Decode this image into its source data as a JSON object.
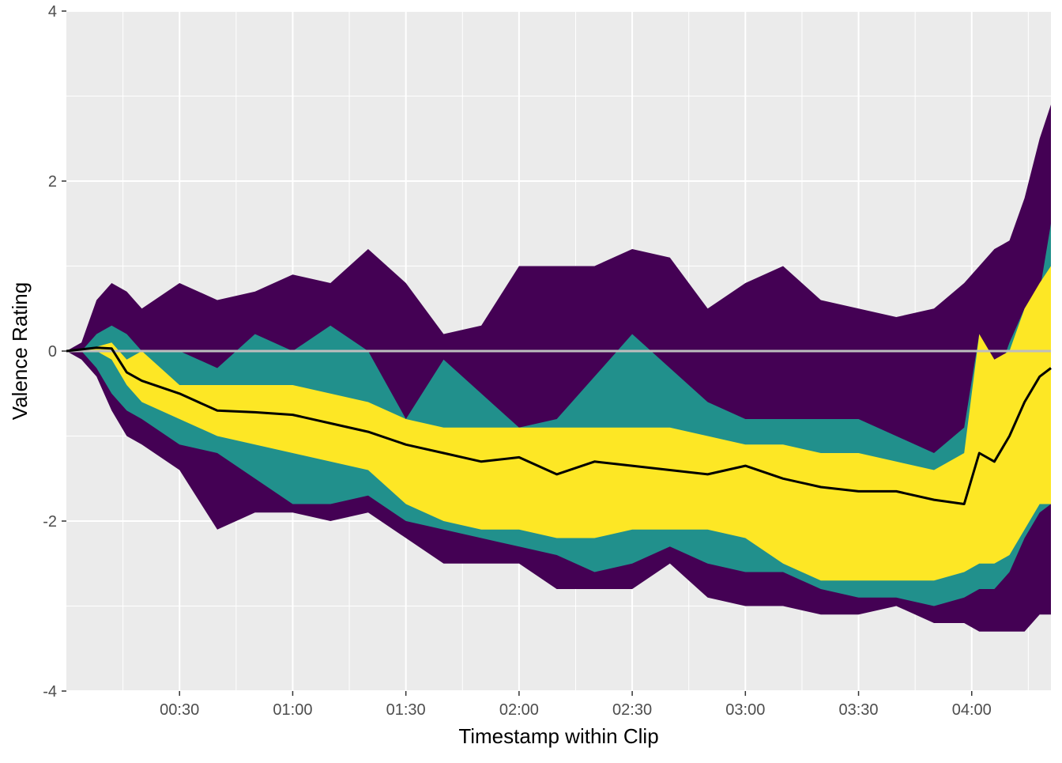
{
  "chart_data": {
    "type": "area",
    "xlabel": "Timestamp within Clip",
    "ylabel": "Valence Rating",
    "x_unit": "mm:ss",
    "xlim": [
      "00:00",
      "04:21"
    ],
    "ylim": [
      -4,
      4
    ],
    "x_ticks": [
      "00:30",
      "01:00",
      "01:30",
      "02:00",
      "02:30",
      "03:00",
      "03:30",
      "04:00"
    ],
    "y_ticks": [
      "-4",
      "-2",
      "0",
      "2",
      "4"
    ],
    "grid": true,
    "legend": "none",
    "reference_line": {
      "y": 0,
      "color": "#bebebe"
    },
    "colors": {
      "panel": "#ebebeb",
      "grid": "#ffffff",
      "outer_band": "#440154",
      "middle_band": "#21908c",
      "inner_band": "#fde725",
      "mean_line": "#000000"
    },
    "x": [
      "00:00",
      "00:04",
      "00:08",
      "00:12",
      "00:16",
      "00:20",
      "00:30",
      "00:40",
      "00:50",
      "01:00",
      "01:10",
      "01:20",
      "01:30",
      "01:40",
      "01:50",
      "02:00",
      "02:10",
      "02:20",
      "02:30",
      "02:40",
      "02:50",
      "03:00",
      "03:10",
      "03:20",
      "03:30",
      "03:40",
      "03:50",
      "03:58",
      "04:02",
      "04:06",
      "04:10",
      "04:14",
      "04:18",
      "04:21"
    ],
    "series": [
      {
        "band": "outer",
        "upper": [
          0,
          0.1,
          0.6,
          0.8,
          0.7,
          0.5,
          0.8,
          0.6,
          0.7,
          0.9,
          0.8,
          1.2,
          0.8,
          0.2,
          0.3,
          1.0,
          1.0,
          1.0,
          1.2,
          1.1,
          0.5,
          0.8,
          1.0,
          0.6,
          0.5,
          0.4,
          0.5,
          0.8,
          1.0,
          1.2,
          1.3,
          1.8,
          2.5,
          2.9
        ],
        "lower": [
          0,
          -0.1,
          -0.3,
          -0.7,
          -1.0,
          -1.1,
          -1.4,
          -2.1,
          -1.9,
          -1.9,
          -2.0,
          -1.9,
          -2.2,
          -2.5,
          -2.5,
          -2.5,
          -2.8,
          -2.8,
          -2.8,
          -2.5,
          -2.9,
          -3.0,
          -3.0,
          -3.1,
          -3.1,
          -3.0,
          -3.2,
          -3.2,
          -3.3,
          -3.3,
          -3.3,
          -3.3,
          -3.1,
          -3.1
        ]
      },
      {
        "band": "middle",
        "upper": [
          0,
          0,
          0.2,
          0.3,
          0.2,
          0,
          0,
          -0.2,
          0.2,
          0,
          0.3,
          0,
          -0.8,
          -0.1,
          -0.5,
          -0.9,
          -0.8,
          -0.3,
          0.2,
          -0.2,
          -0.6,
          -0.8,
          -0.8,
          -0.8,
          -0.8,
          -1.0,
          -1.2,
          -0.9,
          0.2,
          -0.4,
          0.1,
          0.5,
          0.7,
          1.5
        ],
        "lower": [
          0,
          0,
          -0.2,
          -0.5,
          -0.7,
          -0.8,
          -1.1,
          -1.2,
          -1.5,
          -1.8,
          -1.8,
          -1.7,
          -2.0,
          -2.1,
          -2.2,
          -2.3,
          -2.4,
          -2.6,
          -2.5,
          -2.3,
          -2.5,
          -2.6,
          -2.6,
          -2.8,
          -2.9,
          -2.9,
          -3.0,
          -2.9,
          -2.8,
          -2.8,
          -2.6,
          -2.2,
          -1.9,
          -1.8
        ]
      },
      {
        "band": "inner",
        "upper": [
          0,
          0,
          0.05,
          0.1,
          -0.1,
          0,
          -0.4,
          -0.4,
          -0.4,
          -0.4,
          -0.5,
          -0.6,
          -0.8,
          -0.9,
          -0.9,
          -0.9,
          -0.9,
          -0.9,
          -0.9,
          -0.9,
          -1.0,
          -1.1,
          -1.1,
          -1.2,
          -1.2,
          -1.3,
          -1.4,
          -1.2,
          0.2,
          -0.1,
          0,
          0.5,
          0.8,
          1.0
        ],
        "lower": [
          0,
          0,
          0,
          -0.1,
          -0.4,
          -0.6,
          -0.8,
          -1.0,
          -1.1,
          -1.2,
          -1.3,
          -1.4,
          -1.8,
          -2.0,
          -2.1,
          -2.1,
          -2.2,
          -2.2,
          -2.1,
          -2.1,
          -2.1,
          -2.2,
          -2.5,
          -2.7,
          -2.7,
          -2.7,
          -2.7,
          -2.6,
          -2.5,
          -2.5,
          -2.4,
          -2.1,
          -1.8,
          -1.8
        ]
      },
      {
        "band": "mean",
        "values": [
          0,
          0.02,
          0.04,
          0.03,
          -0.25,
          -0.35,
          -0.5,
          -0.7,
          -0.72,
          -0.75,
          -0.85,
          -0.95,
          -1.1,
          -1.2,
          -1.3,
          -1.25,
          -1.45,
          -1.3,
          -1.35,
          -1.4,
          -1.45,
          -1.35,
          -1.5,
          -1.6,
          -1.65,
          -1.65,
          -1.75,
          -1.8,
          -1.2,
          -1.3,
          -1.0,
          -0.6,
          -0.3,
          -0.2
        ]
      }
    ]
  }
}
